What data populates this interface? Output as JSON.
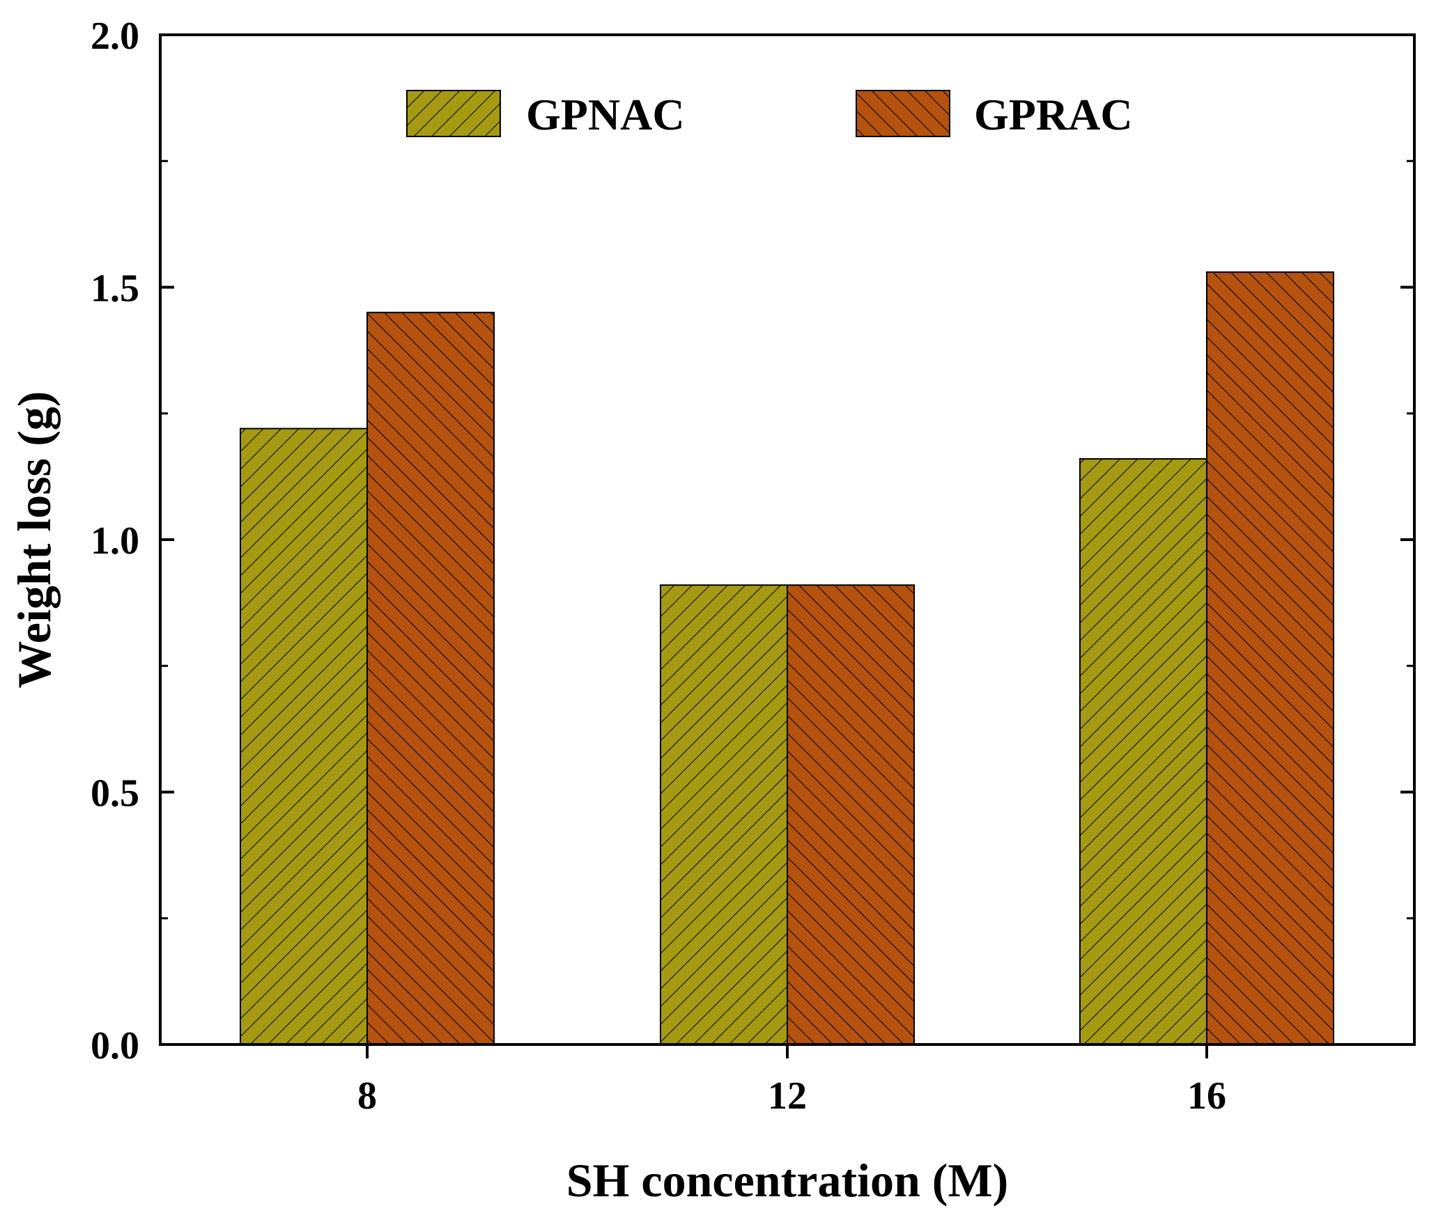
{
  "chart_data": {
    "type": "bar",
    "title": "",
    "xlabel": "SH concentration (M)",
    "ylabel": "Weight loss (g)",
    "categories": [
      "8",
      "12",
      "16"
    ],
    "series": [
      {
        "name": "GPNAC",
        "values": [
          1.22,
          0.91,
          1.16
        ],
        "color": "#a59a12",
        "hatch": "forward-diagonal"
      },
      {
        "name": "GPRAC",
        "values": [
          1.45,
          0.91,
          1.53
        ],
        "color": "#b4520e",
        "hatch": "back-diagonal"
      }
    ],
    "ylim": [
      0,
      2.0
    ],
    "yticks": [
      "0.0",
      "0.5",
      "1.0",
      "1.5",
      "2.0"
    ],
    "ytick_values": [
      0,
      0.5,
      1.0,
      1.5,
      2.0
    ],
    "legend_position": "top-center",
    "grid": false
  }
}
